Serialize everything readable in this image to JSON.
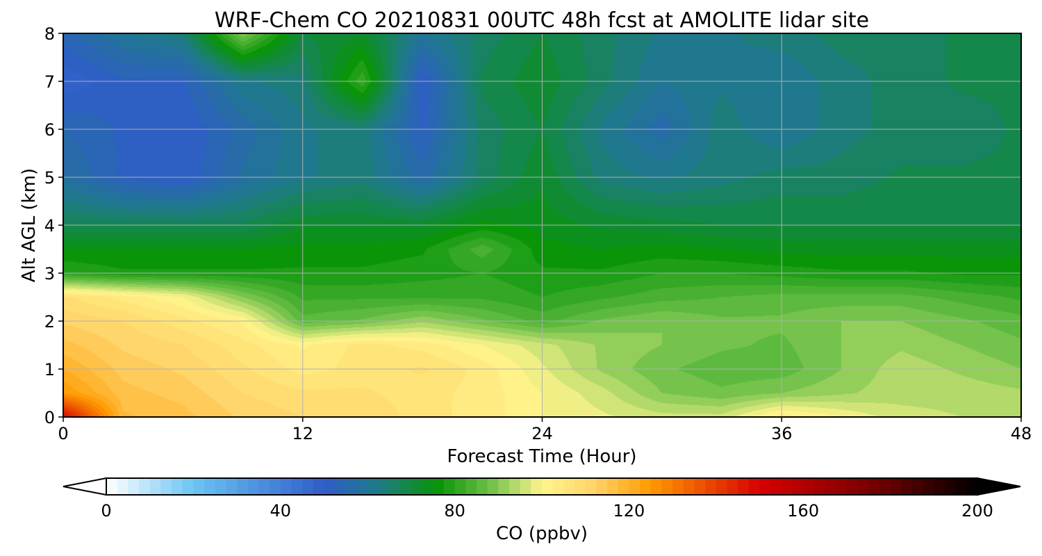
{
  "chart_data": {
    "type": "heatmap",
    "title": "WRF-Chem CO  20210831 00UTC 48h fcst at AMOLITE lidar site",
    "xlabel": "Forecast Time (Hour)",
    "ylabel": "Alt AGL (km)",
    "xlim": [
      0,
      48
    ],
    "ylim": [
      0,
      8
    ],
    "xticks": [
      "0",
      "12",
      "24",
      "36",
      "48"
    ],
    "yticks": [
      "0",
      "1",
      "2",
      "3",
      "4",
      "5",
      "6",
      "7",
      "8"
    ],
    "grid": true,
    "x_hours": [
      0,
      3,
      6,
      9,
      12,
      15,
      18,
      21,
      24,
      27,
      30,
      33,
      36,
      39,
      42,
      45,
      48
    ],
    "y_km": [
      0,
      0.5,
      1,
      1.5,
      2,
      2.5,
      3,
      3.5,
      4,
      5,
      6,
      7,
      8
    ],
    "co_ppbv": [
      [
        150,
        118,
        116,
        112,
        110,
        110,
        106,
        104,
        100,
        98,
        96,
        96,
        104,
        100,
        96,
        95,
        94
      ],
      [
        125,
        116,
        114,
        110,
        108,
        108,
        106,
        104,
        100,
        96,
        90,
        88,
        90,
        92,
        94,
        94,
        93
      ],
      [
        120,
        114,
        112,
        108,
        104,
        106,
        108,
        104,
        98,
        92,
        88,
        86,
        86,
        90,
        94,
        92,
        90
      ],
      [
        116,
        112,
        110,
        106,
        102,
        106,
        104,
        100,
        96,
        92,
        90,
        88,
        87,
        90,
        92,
        90,
        88
      ],
      [
        112,
        110,
        106,
        102,
        86,
        88,
        92,
        88,
        84,
        88,
        90,
        88,
        88,
        90,
        90,
        88,
        86
      ],
      [
        108,
        104,
        100,
        90,
        82,
        82,
        82,
        82,
        80,
        82,
        84,
        85,
        86,
        86,
        86,
        84,
        82
      ],
      [
        80,
        78,
        78,
        78,
        78,
        78,
        79,
        80,
        78,
        78,
        80,
        80,
        79,
        78,
        78,
        77,
        77
      ],
      [
        75,
        75,
        75,
        75,
        76,
        76,
        77,
        84,
        76,
        75,
        76,
        75,
        74,
        74,
        74,
        74,
        74
      ],
      [
        68,
        68,
        68,
        68,
        72,
        72,
        72,
        76,
        74,
        72,
        71,
        70,
        70,
        70,
        70,
        70,
        70
      ],
      [
        58,
        52,
        50,
        58,
        62,
        64,
        56,
        66,
        72,
        64,
        62,
        64,
        66,
        66,
        68,
        68,
        68
      ],
      [
        55,
        52,
        50,
        56,
        62,
        64,
        52,
        66,
        70,
        62,
        56,
        64,
        60,
        64,
        66,
        66,
        68
      ],
      [
        48,
        52,
        52,
        62,
        64,
        82,
        50,
        68,
        72,
        66,
        60,
        62,
        60,
        64,
        66,
        68,
        68
      ],
      [
        54,
        60,
        64,
        90,
        70,
        72,
        60,
        66,
        70,
        66,
        62,
        62,
        64,
        66,
        66,
        68,
        68
      ]
    ],
    "colorbar": {
      "label": "CO  (ppbv)",
      "ticks": [
        "0",
        "40",
        "80",
        "120",
        "160",
        "200"
      ],
      "min": 0,
      "max": 200,
      "extend": "both"
    },
    "color_stops": [
      {
        "v": 0,
        "c": "#ffffff"
      },
      {
        "v": 20,
        "c": "#6cc4f3"
      },
      {
        "v": 50,
        "c": "#2f5dc8"
      },
      {
        "v": 62,
        "c": "#1f7a8a"
      },
      {
        "v": 76,
        "c": "#089408"
      },
      {
        "v": 88,
        "c": "#6cc048"
      },
      {
        "v": 100,
        "c": "#fff58c"
      },
      {
        "v": 112,
        "c": "#ffd46a"
      },
      {
        "v": 125,
        "c": "#ff9a00"
      },
      {
        "v": 150,
        "c": "#d80000"
      },
      {
        "v": 175,
        "c": "#7a0000"
      },
      {
        "v": 200,
        "c": "#000000"
      }
    ]
  }
}
